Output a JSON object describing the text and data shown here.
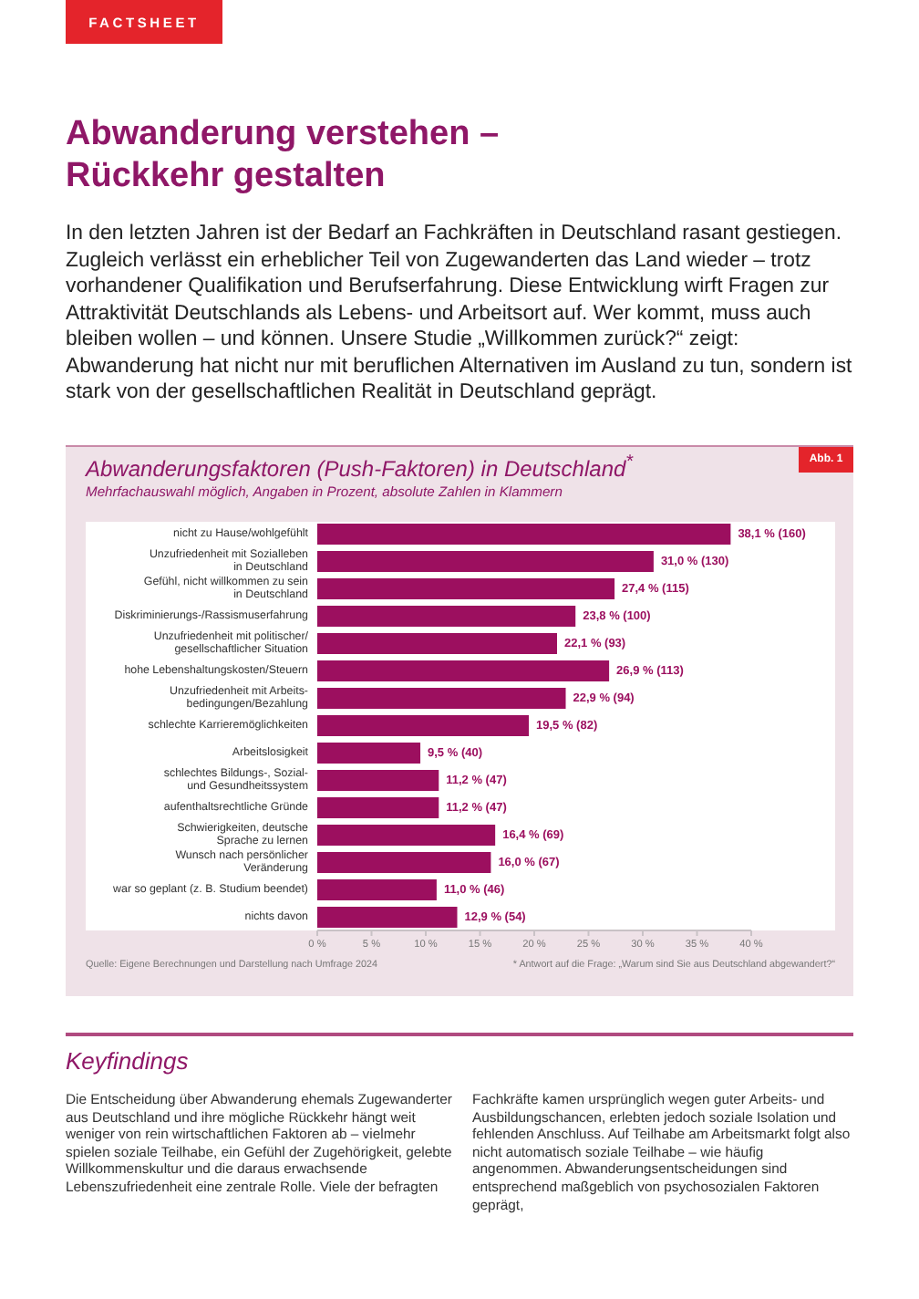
{
  "chart_data": {
    "type": "bar",
    "orientation": "horizontal",
    "title": "Abwanderungsfaktoren (Push-Faktoren) in Deutschland$^{*}$",
    "subtitle": "Mehrfachauswahl möglich, Angaben in Prozent, absolute Zahlen in Klammern",
    "categories": [
      "nicht zu Hause/wohlgefühlt",
      "Unzufriedenheit mit Sozialleben\nin Deutschland",
      "Gefühl, nicht willkommen zu sein\nin Deutschland",
      "Diskriminierungs-/Rassismuserfahrung",
      "Unzufriedenheit mit politischer/\ngesellschaftlicher Situation",
      "hohe Lebenshaltungskosten/Steuern",
      "Unzufriedenheit mit Arbeits-\nbedingungen/Bezahlung",
      "schlechte Karrieremöglichkeiten",
      "Arbeitslosigkeit",
      "schlechtes Bildungs-, Sozial-\nund Gesundheitssystem",
      "aufenthaltsrechtliche Gründe",
      "Schwierigkeiten, deutsche\nSprache zu lernen",
      "Wunsch nach persönlicher\nVeränderung",
      "war so geplant (z. B. Studium beendet)",
      "nichts davon"
    ],
    "values": [
      38.1,
      31.0,
      27.4,
      23.8,
      22.1,
      26.9,
      22.9,
      19.5,
      9.5,
      11.2,
      11.2,
      16.4,
      16.0,
      11.0,
      12.9
    ],
    "value_labels": [
      "38,1 % (160)",
      "31,0 % (130)",
      "27,4 % (115)",
      "23,8 % (100)",
      "22,1 % (93)",
      "26,9 % (113)",
      "22,9 % (94)",
      "19,5 % (82)",
      "9,5 % (40)",
      "11,2 % (47)",
      "11,2 % (47)",
      "16,4 % (69)",
      "16,0 % (67)",
      "11,0 % (46)",
      "12,9 % (54)"
    ],
    "color": "#9c0f5f",
    "xlim": [
      0,
      40
    ],
    "xticks": [
      {
        "value": 0,
        "label": "0 %"
      },
      {
        "value": 5,
        "label": "5 %"
      },
      {
        "value": 10,
        "label": "10 %"
      },
      {
        "value": 15,
        "label": "15 %"
      },
      {
        "value": 20,
        "label": "20 %"
      },
      {
        "value": 25,
        "label": "25 %"
      },
      {
        "value": 30,
        "label": "30 %"
      },
      {
        "value": 35,
        "label": "35 %"
      },
      {
        "value": 40,
        "label": "40 %"
      }
    ],
    "annotations": [
      "FACTSHEET",
      "Abwanderung verstehen –\nRückkehr gestalten",
      "In den letzten Jahren ist der Bedarf an Fachkräften in Deutschland rasant gestiegen. Zugleich verlässt ein erheblicher Teil von Zugewanderten das Land wieder – trotz vorhandener Qualifikation und Berufserfahrung. Diese Entwicklung wirft Fragen zur Attraktivität Deutschlands als Lebens- und Arbeitsort auf. Wer kommt, muss auch bleiben wollen – und können. Unsere Studie „Willkommen zurück?“ zeigt: Abwanderung hat nicht nur mit beruflichen Alternativen im Ausland zu tun, sondern ist stark von der gesellschaftlichen Realität in Deutschland geprägt.",
      "Abb. 1",
      "Quelle: Eigene Berechnungen und Darstellung nach Umfrage 2024",
      "* Antwort auf die Frage: „Warum sind Sie aus Deutschland abgewandert?“",
      "Keyfindings",
      "Die Entscheidung über Abwanderung ehemals Zugewanderter aus Deutschland und ihre mögliche Rückkehr hängt weit weniger von rein wirtschaftlichen Faktoren ab – vielmehr spielen soziale Teilhabe, ein Gefühl der Zugehörigkeit, gelebte Willkommenskultur und die daraus erwachsende Lebenszufriedenheit eine zentrale Rolle. Viele der befragten",
      "Fachkräfte kamen ursprünglich wegen guter Arbeits- und Ausbildungschancen, erlebten jedoch soziale Isolation und fehlenden Anschluss. Auf Teilhabe am Arbeitsmarkt folgt also nicht automatisch soziale Teilhabe – wie häufig angenommen. Abwanderungsentscheidungen sind entsprechend maßgeblich von psychosozialen Faktoren geprägt,"
    ]
  }
}
